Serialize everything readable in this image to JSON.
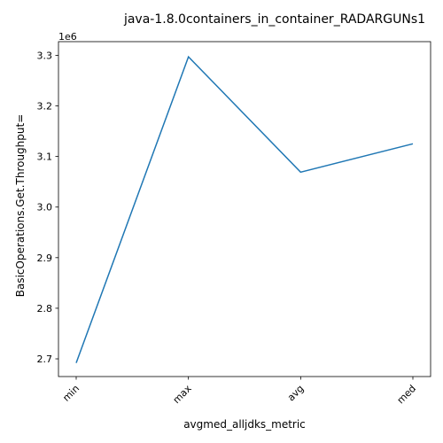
{
  "chart_data": {
    "type": "line",
    "title": "java-1.8.0containers_in_container_RADARGUNs1",
    "xlabel": "avgmed_alljdks_metric",
    "ylabel": "BasicOperations.Get.Throughput=",
    "y_offset_text": "1e6",
    "categories": [
      "min",
      "max",
      "avg",
      "med"
    ],
    "y_scale": 1000000,
    "y_ticks": [
      2.7,
      2.8,
      2.9,
      3.0,
      3.1,
      3.2,
      3.3
    ],
    "y_tick_labels": [
      "2.7",
      "2.8",
      "2.9",
      "3.0",
      "3.1",
      "3.2",
      "3.3"
    ],
    "ylim": [
      2665000,
      3327000
    ],
    "series": [
      {
        "color": "#1f77b4",
        "values": [
          2692000,
          3297000,
          3069000,
          3125000
        ]
      }
    ],
    "grid": false,
    "legend": "none"
  }
}
